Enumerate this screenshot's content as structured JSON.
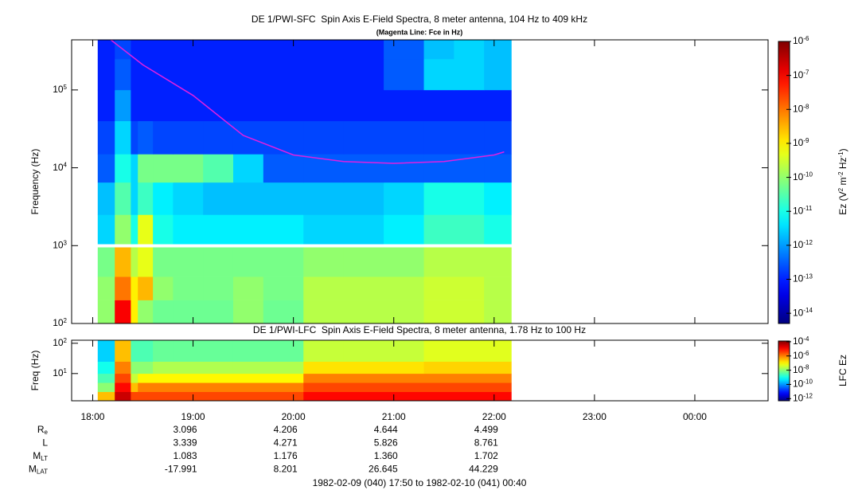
{
  "chart_data": [
    {
      "type": "heatmap",
      "title": "DE 1/PWI-SFC  Spin Axis E-Field Spectra, 8 meter antenna, 104 Hz to 409 kHz",
      "subtitle": "(Magenta Line: Fce in Hz)",
      "y_label": "Frequency (Hz)",
      "colorbar_label": "Ez (V^2 m^-2 Hz^-1)",
      "colormap": "jet",
      "log_y": true,
      "log_z": true,
      "xlim": [
        17.79,
        24.73
      ],
      "ylim": [
        100,
        440000
      ],
      "yticks": [
        {
          "value": 100,
          "label": "10^2"
        },
        {
          "value": 1000,
          "label": "10^3"
        },
        {
          "value": 10000,
          "label": "10^4"
        },
        {
          "value": 100000,
          "label": "10^5"
        }
      ],
      "zlim": [
        5e-15,
        1e-06
      ],
      "zticks": [
        {
          "value": 1e-14,
          "label": "10^-14"
        },
        {
          "value": 1e-13,
          "label": "10^-13"
        },
        {
          "value": 1e-12,
          "label": "10^-12"
        },
        {
          "value": 1e-11,
          "label": "10^-11"
        },
        {
          "value": 1e-10,
          "label": "10^-10"
        },
        {
          "value": 1e-09,
          "label": "10^-9"
        },
        {
          "value": 1e-08,
          "label": "10^-8"
        },
        {
          "value": 1e-07,
          "label": "10^-7"
        },
        {
          "value": 1e-06,
          "label": "10^-6"
        }
      ],
      "x_edges": [
        18.05,
        18.22,
        18.38,
        18.45,
        18.6,
        18.8,
        19.1,
        19.4,
        19.7,
        20.1,
        20.5,
        20.9,
        21.3,
        21.6,
        21.9,
        22.17
      ],
      "y_edges": [
        100,
        200,
        400,
        950,
        1050,
        2500,
        6500,
        15000,
        40000,
        100000,
        250000,
        440000
      ],
      "z": [
        [
          1e-10,
          1e-07,
          1e-09,
          1e-10,
          5e-11,
          5e-11,
          5e-11,
          1e-10,
          5e-11,
          2e-10,
          2e-10,
          2e-10,
          3e-10,
          3e-10,
          2e-10
        ],
        [
          1e-10,
          1e-08,
          1e-09,
          3e-09,
          1e-10,
          6e-11,
          6e-11,
          1e-10,
          6e-11,
          2e-10,
          2e-10,
          2e-10,
          3e-10,
          3e-10,
          2e-10
        ],
        [
          6e-11,
          3e-09,
          2e-10,
          5e-10,
          6e-11,
          6e-11,
          6e-11,
          6e-11,
          6e-11,
          1e-10,
          1e-10,
          1e-10,
          2e-10,
          2e-10,
          2e-10
        ],
        [
          null,
          null,
          null,
          null,
          null,
          null,
          null,
          null,
          null,
          null,
          null,
          null,
          null,
          null,
          null
        ],
        [
          3e-12,
          1e-10,
          1e-11,
          5e-10,
          1e-11,
          5e-12,
          5e-12,
          5e-12,
          5e-12,
          3e-12,
          3e-12,
          5e-12,
          2e-11,
          2e-11,
          1e-11
        ],
        [
          2e-12,
          3e-11,
          3e-12,
          2e-11,
          5e-12,
          3e-12,
          2e-12,
          2e-12,
          2e-12,
          2e-12,
          2e-12,
          3e-12,
          1e-11,
          1e-11,
          5e-12
        ],
        [
          3e-13,
          1e-11,
          3e-12,
          6e-11,
          6e-11,
          6e-11,
          3e-11,
          3e-12,
          3e-13,
          3e-13,
          3e-13,
          3e-13,
          3e-13,
          3e-13,
          3e-13
        ],
        [
          2e-13,
          3e-12,
          2e-13,
          3e-13,
          2e-13,
          2e-13,
          2e-13,
          2e-13,
          2e-13,
          2e-13,
          2e-13,
          2e-13,
          2e-13,
          2e-13,
          2e-13
        ],
        [
          1e-13,
          1e-12,
          1e-13,
          1e-13,
          1e-13,
          1e-13,
          1e-13,
          1e-13,
          1e-13,
          1e-13,
          1e-13,
          1e-13,
          1e-13,
          1e-13,
          1e-13
        ],
        [
          1e-13,
          3e-13,
          1e-13,
          1e-13,
          1e-13,
          1e-13,
          1e-13,
          1e-13,
          1e-13,
          1e-13,
          1e-13,
          3e-13,
          3e-12,
          3e-12,
          2e-12
        ],
        [
          1e-13,
          2e-13,
          1e-13,
          1e-13,
          1e-13,
          1e-13,
          1e-13,
          1e-13,
          1e-13,
          1e-13,
          1e-13,
          3e-13,
          2e-12,
          3e-12,
          2e-12
        ]
      ],
      "line": {
        "color": "#e020e0",
        "x": [
          18.18,
          18.5,
          19.0,
          19.5,
          20.0,
          20.5,
          21.0,
          21.5,
          22.0,
          22.1
        ],
        "values": [
          440000,
          210000,
          85000,
          26000,
          14600,
          12000,
          11400,
          12000,
          14600,
          16000
        ]
      }
    },
    {
      "type": "heatmap",
      "title": "DE 1/PWI-LFC  Spin Axis E-Field Spectra, 8 meter antenna, 1.78 Hz to 100 Hz",
      "y_label": "Freq (Hz)",
      "colorbar_label": "LFC Ez",
      "colormap": "jet",
      "log_y": true,
      "log_z": true,
      "xlim": [
        17.79,
        24.73
      ],
      "xticks": [
        {
          "value": 18,
          "label": "18:00"
        },
        {
          "value": 19,
          "label": "19:00"
        },
        {
          "value": 20,
          "label": "20:00"
        },
        {
          "value": 21,
          "label": "21:00"
        },
        {
          "value": 22,
          "label": "22:00"
        },
        {
          "value": 23,
          "label": "23:00"
        },
        {
          "value": 24,
          "label": "00:00"
        }
      ],
      "ylim": [
        1.26,
        126
      ],
      "yticks": [
        {
          "value": 10,
          "label": "10^1"
        },
        {
          "value": 100,
          "label": "10^2"
        }
      ],
      "zlim": [
        5e-13,
        0.000126
      ],
      "zticks": [
        {
          "value": 0.0001,
          "label": "10^-4"
        },
        {
          "value": 1e-06,
          "label": "10^-6"
        },
        {
          "value": 1e-08,
          "label": "10^-8"
        },
        {
          "value": 1e-10,
          "label": "10^-10"
        },
        {
          "value": 1e-12,
          "label": "10^-12"
        }
      ],
      "x_edges": [
        18.05,
        18.22,
        18.38,
        18.45,
        18.6,
        18.8,
        19.1,
        19.4,
        19.7,
        20.1,
        20.5,
        20.9,
        21.3,
        21.6,
        21.9,
        22.17
      ],
      "y_edges": [
        1.26,
        2.5,
        5,
        10,
        25,
        126
      ],
      "z": [
        [
          3e-07,
          3e-05,
          3e-06,
          3e-06,
          3e-06,
          3e-06,
          3e-06,
          3e-06,
          3e-06,
          1e-05,
          1e-05,
          1e-05,
          1e-05,
          1e-05,
          1e-05
        ],
        [
          1e-08,
          1e-05,
          3e-07,
          1e-06,
          1e-06,
          1e-06,
          1e-06,
          1e-06,
          1e-06,
          3e-06,
          3e-06,
          3e-06,
          3e-06,
          3e-06,
          3e-06
        ],
        [
          3e-09,
          3e-06,
          3e-08,
          1e-07,
          1e-07,
          1e-07,
          1e-07,
          1e-07,
          1e-07,
          1e-06,
          1e-06,
          1e-06,
          1e-06,
          1e-06,
          1e-06
        ],
        [
          1e-09,
          1e-06,
          1e-08,
          1e-08,
          2e-08,
          2e-08,
          2e-08,
          2e-08,
          2e-08,
          1.5e-07,
          1.5e-07,
          1.5e-07,
          2e-07,
          2e-07,
          2e-07
        ],
        [
          3e-10,
          3e-07,
          3e-09,
          3e-09,
          5e-09,
          5e-09,
          5e-09,
          5e-09,
          5e-09,
          3e-08,
          3e-08,
          3e-08,
          5e-08,
          5e-08,
          5e-08
        ]
      ],
      "ephemeris": {
        "rows": [
          {
            "label": "R_e",
            "values": [
              "3.096",
              "4.206",
              "4.644",
              "4.499"
            ]
          },
          {
            "label": "L",
            "values": [
              "3.339",
              "4.271",
              "5.826",
              "8.761"
            ]
          },
          {
            "label": "M_LT",
            "values": [
              "1.083",
              "1.176",
              "1.360",
              "1.702"
            ]
          },
          {
            "label": "M_LAT",
            "values": [
              "-17.991",
              "8.201",
              "26.645",
              "44.229"
            ]
          }
        ],
        "x": [
          19,
          20,
          21,
          22
        ]
      },
      "footer": "1982-02-09 (040) 17:50 to 1982-02-10 (041) 00:40"
    }
  ]
}
